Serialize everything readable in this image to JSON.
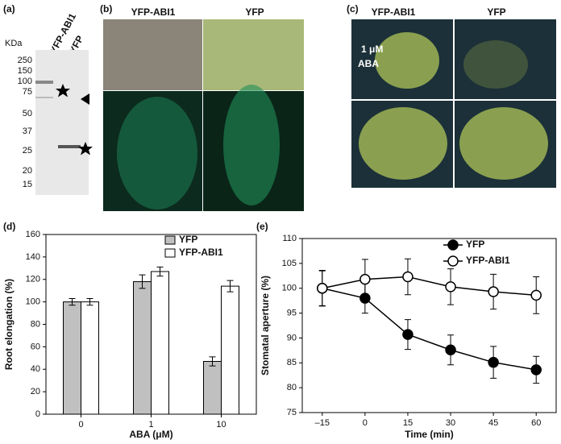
{
  "panels": {
    "a": {
      "label": "(a)",
      "unit": "KDa",
      "lanes": [
        "YFP-ABI1",
        "YFP"
      ],
      "markers": [
        250,
        150,
        100,
        75,
        50,
        37,
        25,
        20,
        15
      ]
    },
    "b": {
      "label": "(b)",
      "columns": [
        "YFP-ABI1",
        "YFP"
      ]
    },
    "c": {
      "label": "(c)",
      "columns": [
        "YFP-ABI1",
        "YFP"
      ],
      "treatment": [
        "1 μM",
        "ABA"
      ]
    }
  },
  "chart_data": [
    {
      "type": "bar",
      "panel_label": "(d)",
      "x_label": "ABA (μM)",
      "y_label": "Root elongation (%)",
      "categories": [
        "0",
        "1",
        "10"
      ],
      "series": [
        {
          "name": "YFP",
          "color": "#c0c0c0",
          "values": [
            100,
            118,
            47
          ],
          "errors": [
            3,
            6,
            4
          ]
        },
        {
          "name": "YFP-ABI1",
          "color": "#ffffff",
          "values": [
            100,
            127,
            114
          ],
          "errors": [
            3,
            4,
            5
          ]
        }
      ],
      "ylim": [
        0,
        160
      ],
      "yticks": [
        0,
        20,
        40,
        60,
        80,
        100,
        120,
        140,
        160
      ]
    },
    {
      "type": "line",
      "panel_label": "(e)",
      "x_label": "Time (min)",
      "y_label": "Stomatal aperture (%)",
      "x": [
        -15,
        0,
        15,
        30,
        45,
        60
      ],
      "series": [
        {
          "name": "YFP",
          "color": "#000000",
          "values": [
            100,
            98,
            90.7,
            87.6,
            85.1,
            83.6
          ],
          "errors": [
            3.5,
            3,
            3,
            3,
            3.2,
            2.7
          ]
        },
        {
          "name": "YFP-ABI1",
          "color": "#ffffff",
          "values": [
            100,
            101.8,
            102.3,
            100.3,
            99.3,
            98.6
          ],
          "errors": [
            3.6,
            4,
            3.6,
            3.6,
            3.5,
            3.7
          ]
        }
      ],
      "xlim": [
        -22,
        67
      ],
      "xticks": [
        {
          "value": -15,
          "label": "–15"
        },
        0,
        15,
        30,
        45,
        60
      ],
      "ylim": [
        75,
        110
      ],
      "yticks": [
        75,
        80,
        85,
        90,
        95,
        100,
        105,
        110
      ]
    }
  ]
}
